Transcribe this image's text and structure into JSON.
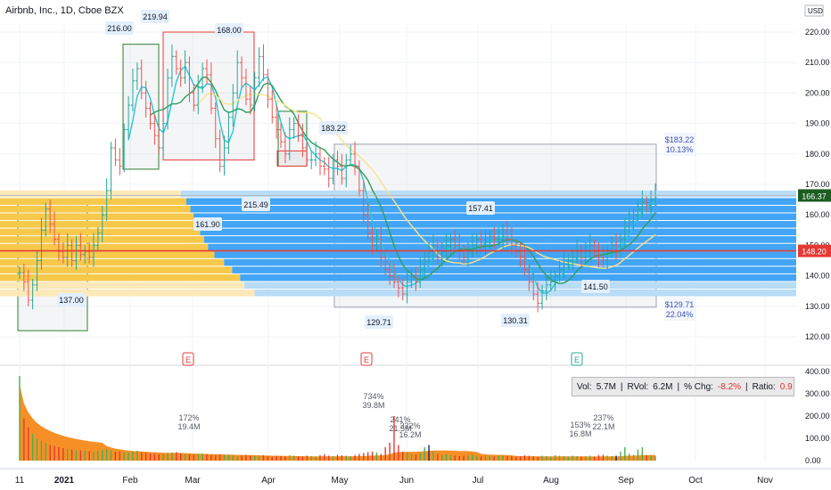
{
  "header": {
    "title": "Airbnb, Inc., 1D, Cboe BZX",
    "currency": "USD"
  },
  "chart_data": [
    {
      "type": "ohlc",
      "title": "Airbnb, Inc., 1D, Cboe BZX",
      "price_axis": {
        "ticks": [
          "220.00",
          "210.00",
          "200.00",
          "190.00",
          "180.00",
          "170.00",
          "160.00",
          "150.00",
          "140.00",
          "130.00",
          "120.00"
        ],
        "ylim": [
          115,
          226
        ]
      },
      "time_axis": {
        "labels": [
          "11",
          "2021",
          "Feb",
          "Mar",
          "Apr",
          "May",
          "Jun",
          "Jul",
          "Aug",
          "Sep",
          "Oct",
          "Nov"
        ],
        "bold": [
          "2021"
        ]
      },
      "last_price": "166.37",
      "horizontal_line": "148.20",
      "closes": [
        141,
        138,
        132,
        137,
        145,
        155,
        162,
        157,
        152,
        148,
        146,
        150,
        145,
        150,
        147,
        148,
        146,
        150,
        154,
        160,
        168,
        182,
        178,
        176,
        188,
        196,
        204,
        208,
        200,
        195,
        190,
        186,
        182,
        190,
        205,
        212,
        208,
        205,
        210,
        200,
        196,
        202,
        208,
        206,
        195,
        185,
        176,
        182,
        192,
        200,
        210,
        205,
        198,
        196,
        205,
        212,
        206,
        198,
        192,
        188,
        184,
        180,
        188,
        190,
        186,
        182,
        178,
        178,
        180,
        176,
        175,
        172,
        178,
        176,
        172,
        178,
        180,
        176,
        168,
        160,
        154,
        150,
        152,
        146,
        142,
        140,
        138,
        136,
        134,
        138,
        140,
        138,
        142,
        146,
        148,
        150,
        146,
        148,
        150,
        152,
        150,
        148,
        146,
        148,
        150,
        152,
        150,
        151,
        153,
        152,
        152,
        155,
        152,
        150,
        148,
        146,
        142,
        138,
        134,
        131,
        135,
        137,
        138,
        140,
        142,
        144,
        145,
        146,
        148,
        146,
        148,
        150,
        148,
        146,
        145,
        148,
        150,
        148,
        152,
        156,
        158,
        160,
        162,
        164,
        163,
        165,
        166.37
      ],
      "price_labels": [
        {
          "text": "137.00"
        },
        {
          "text": "216.00"
        },
        {
          "text": "219.94"
        },
        {
          "text": "161.90"
        },
        {
          "text": "215.49"
        },
        {
          "text": "168.00"
        },
        {
          "text": "183.22"
        },
        {
          "text": "129.71"
        },
        {
          "text": "157.41"
        },
        {
          "text": "130.31"
        },
        {
          "text": "141.50"
        }
      ],
      "projection": {
        "upper": {
          "price": "$183.22",
          "pct": "10.13%"
        },
        "lower": {
          "price": "$129.71",
          "pct": "22.04%"
        }
      },
      "moving_averages": [
        {
          "color": "#26c6da"
        },
        {
          "color": "#2e9e5b"
        },
        {
          "color": "#f7e38a"
        }
      ],
      "volume_profile": {
        "rows_left": [
          208,
          218,
          200,
          190,
          172,
          164,
          155,
          152,
          148,
          145,
          142,
          138,
          135,
          130
        ],
        "rows_right": [
          218,
          205,
          200,
          190,
          180,
          168,
          160,
          155,
          150,
          146,
          142,
          138,
          133,
          126
        ],
        "bins_from_price": 133,
        "bin_step": 2.5
      },
      "earnings_markers": [
        "E",
        "E",
        "E"
      ]
    },
    {
      "type": "bar",
      "title": "Volume",
      "axis_ticks": [
        "400.00",
        "300.00",
        "200.00",
        "100.00",
        "0.00"
      ],
      "ylim": [
        0,
        400
      ],
      "annotations": [
        {
          "pct": "172%",
          "vol": "19.4M"
        },
        {
          "pct": "734%",
          "vol": "39.8M"
        },
        {
          "pct": "241%",
          "vol": "21.5M"
        },
        {
          "pct": "332%",
          "vol": "16.2M"
        },
        {
          "pct": "153%",
          "vol": "16.8M"
        },
        {
          "pct": "237%",
          "vol": "22.1M"
        }
      ],
      "volume_m": [
        380,
        190,
        150,
        120,
        100,
        90,
        80,
        70,
        66,
        60,
        56,
        52,
        50,
        48,
        46,
        44,
        42,
        40,
        44,
        48,
        52,
        46,
        40,
        42,
        38,
        36,
        40,
        44,
        38,
        34,
        32,
        30,
        28,
        30,
        34,
        36,
        38,
        32,
        30,
        28,
        26,
        30,
        32,
        28,
        26,
        24,
        28,
        26,
        24,
        22,
        20,
        24,
        26,
        22,
        20,
        22,
        24,
        20,
        18,
        22,
        20,
        18,
        24,
        22,
        20,
        18,
        22,
        20,
        18,
        24,
        28,
        22,
        20,
        26,
        24,
        22,
        20,
        24,
        30,
        34,
        38,
        40,
        36,
        30,
        60,
        80,
        200,
        70,
        40,
        36,
        30,
        28,
        34,
        60,
        70,
        40,
        30,
        26,
        28,
        24,
        22,
        20,
        22,
        24,
        26,
        20,
        18,
        22,
        20,
        18,
        22,
        24,
        20,
        22,
        18,
        20,
        24,
        22,
        20,
        18,
        22,
        20,
        18,
        24,
        22,
        20,
        18,
        22,
        20,
        18,
        20,
        22,
        18,
        24,
        26,
        22,
        20,
        22,
        40,
        60,
        30,
        26,
        50,
        60,
        22,
        24,
        20
      ],
      "stats": {
        "vol_label": "Vol:",
        "vol": "5.7M",
        "rvol_label": "RVol:",
        "rvol": "6.2M",
        "chg_label": "% Chg:",
        "chg": "-8.2%",
        "ratio_label": "Ratio:",
        "ratio": "0.9"
      }
    }
  ]
}
